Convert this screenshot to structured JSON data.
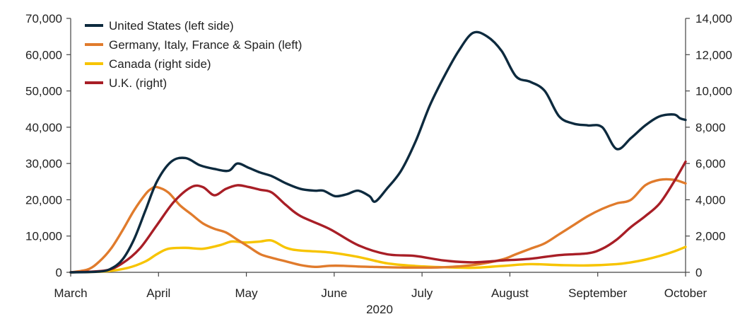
{
  "chart_data": {
    "type": "line",
    "title": "",
    "year_label": "2020",
    "x_categories": [
      "March",
      "April",
      "May",
      "June",
      "July",
      "August",
      "September",
      "October"
    ],
    "x_range_days": [
      0,
      214
    ],
    "y_left": {
      "min": 0,
      "max": 70000,
      "ticks": [
        0,
        10000,
        20000,
        30000,
        40000,
        50000,
        60000,
        70000
      ],
      "tick_labels": [
        "0",
        "10,000",
        "20,000",
        "30,000",
        "40,000",
        "50,000",
        "60,000",
        "70,000"
      ]
    },
    "y_right": {
      "min": 0,
      "max": 14000,
      "ticks": [
        0,
        2000,
        4000,
        6000,
        8000,
        10000,
        12000,
        14000
      ],
      "tick_labels": [
        "0",
        "2,000",
        "4,000",
        "6,000",
        "8,000",
        "10,000",
        "12,000",
        "14,000"
      ]
    },
    "legend_position": "top-left",
    "series": [
      {
        "name": "United States (left side)",
        "axis": "left",
        "color": "#0d2a3e",
        "x": [
          0,
          10,
          14,
          18,
          22,
          26,
          30,
          35,
          40,
          45,
          50,
          55,
          58,
          62,
          66,
          70,
          75,
          80,
          85,
          88,
          92,
          96,
          100,
          104,
          106,
          110,
          115,
          120,
          125,
          130,
          135,
          140,
          145,
          150,
          155,
          160,
          165,
          170,
          175,
          180,
          185,
          190,
          195,
          200,
          205,
          210,
          212,
          214
        ],
        "y": [
          0,
          200,
          1000,
          3500,
          9000,
          17000,
          25000,
          30500,
          31500,
          29500,
          28500,
          28000,
          30000,
          28800,
          27500,
          26500,
          24500,
          23000,
          22500,
          22500,
          21000,
          21500,
          22500,
          21000,
          19500,
          23000,
          28000,
          36000,
          46000,
          54000,
          61000,
          66000,
          65000,
          61000,
          54000,
          52500,
          50000,
          43000,
          41000,
          40500,
          40000,
          34000,
          37000,
          40500,
          43000,
          43500,
          42500,
          42000
        ]
      },
      {
        "name": "Germany, Italy, France & Spain (left)",
        "axis": "left",
        "color": "#e07b2c",
        "x": [
          0,
          6,
          10,
          14,
          18,
          22,
          26,
          28,
          30,
          34,
          38,
          42,
          46,
          50,
          54,
          58,
          62,
          66,
          70,
          75,
          80,
          85,
          90,
          95,
          100,
          105,
          110,
          120,
          130,
          140,
          150,
          155,
          160,
          165,
          170,
          175,
          180,
          185,
          190,
          195,
          200,
          205,
          210,
          214
        ],
        "y": [
          0,
          800,
          3000,
          6500,
          11500,
          17000,
          21500,
          23000,
          23500,
          22000,
          18500,
          16000,
          13500,
          12000,
          11000,
          9000,
          7000,
          5000,
          4000,
          3000,
          2000,
          1500,
          1800,
          1800,
          1600,
          1500,
          1400,
          1300,
          1400,
          2000,
          3500,
          5000,
          6500,
          8000,
          10500,
          13000,
          15500,
          17500,
          19000,
          20000,
          24000,
          25500,
          25500,
          24500
        ]
      },
      {
        "name": "Canada (right side)",
        "axis": "right",
        "color": "#f7c400",
        "x": [
          0,
          12,
          20,
          26,
          30,
          34,
          40,
          46,
          52,
          56,
          60,
          62,
          66,
          70,
          75,
          80,
          90,
          100,
          110,
          120,
          130,
          140,
          150,
          160,
          170,
          180,
          190,
          195,
          200,
          205,
          210,
          214
        ],
        "y": [
          0,
          50,
          250,
          600,
          1000,
          1300,
          1350,
          1300,
          1500,
          1700,
          1650,
          1650,
          1700,
          1750,
          1350,
          1200,
          1100,
          850,
          500,
          350,
          280,
          250,
          350,
          450,
          400,
          380,
          450,
          550,
          700,
          900,
          1150,
          1400
        ]
      },
      {
        "name": "U.K. (right)",
        "axis": "right",
        "color": "#a81e26",
        "x": [
          0,
          12,
          18,
          24,
          30,
          36,
          42,
          46,
          50,
          54,
          58,
          62,
          66,
          70,
          75,
          80,
          90,
          100,
          110,
          120,
          130,
          140,
          150,
          160,
          170,
          180,
          185,
          190,
          195,
          200,
          205,
          210,
          214
        ],
        "y": [
          0,
          100,
          500,
          1300,
          2600,
          3900,
          4700,
          4700,
          4250,
          4600,
          4800,
          4700,
          4550,
          4400,
          3700,
          3100,
          2400,
          1500,
          1000,
          900,
          650,
          550,
          650,
          750,
          950,
          1050,
          1300,
          1800,
          2500,
          3100,
          3800,
          5000,
          6100
        ]
      }
    ]
  }
}
